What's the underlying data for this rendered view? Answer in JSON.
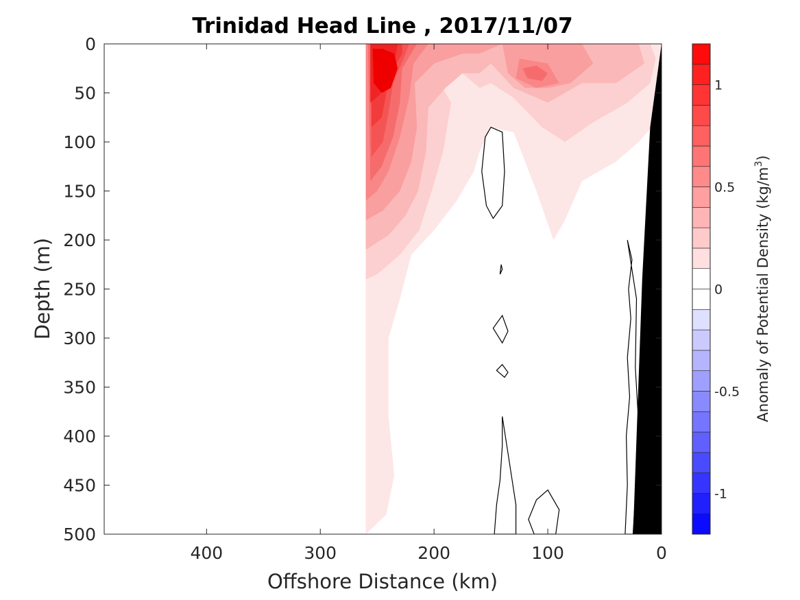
{
  "chart_data": {
    "type": "contour",
    "title": "Trinidad Head Line , 2017/11/07",
    "xlabel": "Offshore Distance (km)",
    "ylabel": "Depth (m)",
    "colorbar_label": "Anomaly of Potential Density (kg/m",
    "colorbar_label_superscript": "3",
    "colorbar_label_close": ")",
    "xlim": [
      490,
      0
    ],
    "x_reversed": true,
    "ylim": [
      0,
      500
    ],
    "y_reversed": true,
    "xticks": [
      400,
      300,
      200,
      100,
      0
    ],
    "xtick_labels": [
      "400",
      "300",
      "200",
      "100",
      "0"
    ],
    "yticks": [
      0,
      50,
      100,
      150,
      200,
      250,
      300,
      350,
      400,
      450,
      500
    ],
    "ytick_labels": [
      "0",
      "50",
      "100",
      "150",
      "200",
      "250",
      "300",
      "350",
      "400",
      "450",
      "500"
    ],
    "colorbar": {
      "range": [
        -1.2,
        1.2
      ],
      "step": 0.1,
      "ticks": [
        1,
        0.5,
        0,
        -0.5,
        -1
      ],
      "tick_labels": [
        "1",
        "0.5",
        "0",
        "-0.5",
        "-1"
      ],
      "colormap": "white-centered blue-red diverging"
    },
    "data_extent_km": [
      0,
      260
    ],
    "bathymetry": {
      "color": "#000000",
      "seafloor": [
        {
          "depth": 0,
          "x": 0
        },
        {
          "depth": 85,
          "x": 10
        },
        {
          "depth": 240,
          "x": 17
        },
        {
          "depth": 500,
          "x": 25
        }
      ]
    },
    "anomaly_levels": [
      {
        "level": 0.1,
        "color": "#fde6e6",
        "outline": [
          [
            260,
            0
          ],
          [
            260,
            500
          ],
          [
            242,
            480
          ],
          [
            235,
            440
          ],
          [
            240,
            380
          ],
          [
            240,
            300
          ],
          [
            230,
            260
          ],
          [
            220,
            215
          ],
          [
            200,
            190
          ],
          [
            180,
            160
          ],
          [
            165,
            130
          ],
          [
            160,
            110
          ],
          [
            150,
            85
          ],
          [
            130,
            90
          ],
          [
            110,
            150
          ],
          [
            95,
            200
          ],
          [
            85,
            180
          ],
          [
            70,
            140
          ],
          [
            40,
            120
          ],
          [
            20,
            100
          ],
          [
            5,
            80
          ],
          [
            2,
            50
          ],
          [
            0,
            0
          ]
        ]
      },
      {
        "level": 0.2,
        "color": "#fcd0d0",
        "outline": [
          [
            260,
            0
          ],
          [
            260,
            240
          ],
          [
            250,
            235
          ],
          [
            230,
            215
          ],
          [
            213,
            190
          ],
          [
            202,
            150
          ],
          [
            192,
            110
          ],
          [
            185,
            60
          ],
          [
            200,
            30
          ],
          [
            190,
            20
          ],
          [
            175,
            30
          ],
          [
            160,
            45
          ],
          [
            150,
            40
          ],
          [
            130,
            55
          ],
          [
            105,
            85
          ],
          [
            85,
            100
          ],
          [
            60,
            80
          ],
          [
            30,
            60
          ],
          [
            10,
            40
          ],
          [
            5,
            15
          ],
          [
            10,
            0
          ]
        ]
      },
      {
        "level": 0.3,
        "color": "#fbb8b8",
        "outline": [
          [
            260,
            0
          ],
          [
            260,
            210
          ],
          [
            240,
            195
          ],
          [
            225,
            175
          ],
          [
            214,
            150
          ],
          [
            207,
            110
          ],
          [
            205,
            65
          ],
          [
            190,
            45
          ],
          [
            175,
            30
          ],
          [
            160,
            30
          ],
          [
            150,
            20
          ],
          [
            130,
            45
          ],
          [
            100,
            60
          ],
          [
            70,
            40
          ],
          [
            40,
            40
          ],
          [
            15,
            20
          ],
          [
            20,
            0
          ]
        ]
      },
      {
        "level": 0.4,
        "color": "#f99f9f",
        "outline": [
          [
            260,
            0
          ],
          [
            260,
            180
          ],
          [
            245,
            170
          ],
          [
            230,
            150
          ],
          [
            220,
            120
          ],
          [
            215,
            85
          ],
          [
            217,
            40
          ],
          [
            200,
            20
          ],
          [
            175,
            10
          ],
          [
            160,
            10
          ],
          [
            140,
            0
          ]
        ]
      },
      {
        "level": 0.5,
        "color": "#f98787",
        "outline": [
          [
            260,
            0
          ],
          [
            260,
            160
          ],
          [
            250,
            150
          ],
          [
            240,
            130
          ],
          [
            230,
            95
          ],
          [
            222,
            55
          ],
          [
            218,
            20
          ],
          [
            205,
            0
          ]
        ]
      },
      {
        "level": 0.6,
        "color": "#f66c6c",
        "outline": [
          [
            258,
            0
          ],
          [
            256,
            140
          ],
          [
            246,
            125
          ],
          [
            236,
            95
          ],
          [
            230,
            60
          ],
          [
            228,
            25
          ],
          [
            215,
            0
          ]
        ]
      },
      {
        "level": 0.7,
        "color": "#f45454",
        "outline": [
          [
            256,
            0
          ],
          [
            255,
            115
          ],
          [
            245,
            100
          ],
          [
            240,
            70
          ],
          [
            236,
            40
          ],
          [
            225,
            10
          ],
          [
            222,
            0
          ]
        ]
      },
      {
        "level": 0.8,
        "color": "#f23b3b",
        "outline": [
          [
            255,
            0
          ],
          [
            255,
            85
          ],
          [
            246,
            75
          ],
          [
            242,
            50
          ],
          [
            238,
            30
          ],
          [
            228,
            10
          ],
          [
            228,
            0
          ]
        ]
      },
      {
        "level": 0.9,
        "color": "#f02424",
        "outline": [
          [
            256,
            0
          ],
          [
            256,
            60
          ],
          [
            248,
            52
          ],
          [
            241,
            40
          ],
          [
            235,
            20
          ],
          [
            232,
            0
          ]
        ]
      },
      {
        "level": 1.0,
        "color": "#ee0000",
        "outline": [
          [
            254,
            5
          ],
          [
            253,
            40
          ],
          [
            246,
            50
          ],
          [
            238,
            45
          ],
          [
            232,
            25
          ],
          [
            235,
            10
          ],
          [
            245,
            5
          ]
        ]
      }
    ],
    "secondary_maxima": [
      {
        "level": 0.4,
        "color": "#f99f9f",
        "outline": [
          [
            140,
            0
          ],
          [
            135,
            30
          ],
          [
            120,
            45
          ],
          [
            100,
            45
          ],
          [
            80,
            40
          ],
          [
            60,
            20
          ],
          [
            70,
            0
          ]
        ]
      },
      {
        "level": 0.5,
        "color": "#f98787",
        "outline": [
          [
            125,
            15
          ],
          [
            128,
            35
          ],
          [
            110,
            45
          ],
          [
            90,
            40
          ],
          [
            100,
            20
          ]
        ]
      },
      {
        "level": 0.6,
        "color": "#f66c6c",
        "outline": [
          [
            122,
            25
          ],
          [
            118,
            35
          ],
          [
            105,
            38
          ],
          [
            100,
            30
          ],
          [
            110,
            22
          ]
        ]
      }
    ],
    "zero_contour_islands": [
      [
        [
          150,
          85
        ],
        [
          140,
          90
        ],
        [
          138,
          130
        ],
        [
          140,
          165
        ],
        [
          148,
          178
        ],
        [
          154,
          165
        ],
        [
          158,
          130
        ],
        [
          155,
          95
        ]
      ],
      [
        [
          140,
          230
        ],
        [
          142,
          235
        ],
        [
          141,
          225
        ]
      ],
      [
        [
          140,
          277
        ],
        [
          135,
          293
        ],
        [
          140,
          305
        ],
        [
          148,
          290
        ]
      ],
      [
        [
          140,
          327
        ],
        [
          135,
          335
        ],
        [
          138,
          340
        ],
        [
          145,
          333
        ]
      ],
      [
        [
          140,
          380
        ],
        [
          136,
          410
        ],
        [
          132,
          440
        ],
        [
          128,
          470
        ],
        [
          128,
          500
        ],
        [
          147,
          500
        ],
        [
          145,
          470
        ],
        [
          142,
          445
        ],
        [
          140,
          410
        ]
      ],
      [
        [
          100,
          455
        ],
        [
          90,
          475
        ],
        [
          93,
          500
        ],
        [
          112,
          500
        ],
        [
          117,
          485
        ],
        [
          110,
          465
        ]
      ],
      [
        [
          30,
          200
        ],
        [
          26,
          220
        ],
        [
          29,
          250
        ],
        [
          27,
          280
        ],
        [
          30,
          320
        ],
        [
          28,
          360
        ],
        [
          31,
          400
        ],
        [
          30,
          450
        ],
        [
          32,
          500
        ],
        [
          25,
          500
        ],
        [
          22,
          440
        ],
        [
          20,
          390
        ],
        [
          23,
          330
        ],
        [
          22,
          260
        ]
      ]
    ]
  }
}
